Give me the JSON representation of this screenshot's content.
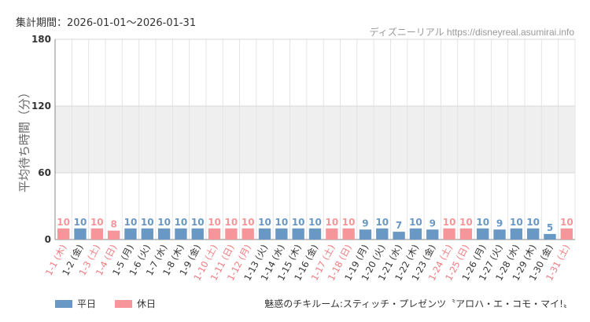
{
  "header": {
    "period": "集計期間：2026-01-01～2026-01-31",
    "credit": "ディズニーリアル https://disneyreal.asumirai.info"
  },
  "footer": {
    "attraction": "魅惑のチキルーム:スティッチ・プレゼンツ〝アロハ・エ・コモ・マイ!〟"
  },
  "colors": {
    "weekday": "#6a98c4",
    "holiday": "#f7969a",
    "band": "#efefef"
  },
  "chart_data": {
    "type": "bar",
    "ylabel": "平均待ち時間（分）",
    "ylim": [
      0,
      180
    ],
    "yticks": [
      "0",
      "60",
      "120",
      "180"
    ],
    "shaded_band": [
      60,
      120
    ],
    "categories": [
      "1-1 (木)",
      "1-2 (金)",
      "1-3 (土)",
      "1-4 (日)",
      "1-5 (月)",
      "1-6 (火)",
      "1-7 (水)",
      "1-8 (木)",
      "1-9 (金)",
      "1-10 (土)",
      "1-11 (日)",
      "1-12 (月)",
      "1-13 (火)",
      "1-14 (水)",
      "1-15 (木)",
      "1-16 (金)",
      "1-17 (土)",
      "1-18 (日)",
      "1-19 (月)",
      "1-20 (火)",
      "1-21 (水)",
      "1-22 (木)",
      "1-23 (金)",
      "1-24 (土)",
      "1-25 (日)",
      "1-26 (月)",
      "1-27 (火)",
      "1-28 (水)",
      "1-29 (木)",
      "1-30 (金)",
      "1-31 (土)"
    ],
    "values": [
      10,
      10,
      10,
      8,
      10,
      10,
      10,
      10,
      10,
      10,
      10,
      10,
      10,
      10,
      10,
      10,
      10,
      10,
      9,
      10,
      7,
      10,
      9,
      10,
      10,
      10,
      9,
      10,
      10,
      5,
      10
    ],
    "day_type": [
      "休日",
      "平日",
      "休日",
      "休日",
      "平日",
      "平日",
      "平日",
      "平日",
      "平日",
      "休日",
      "休日",
      "休日",
      "平日",
      "平日",
      "平日",
      "平日",
      "休日",
      "休日",
      "平日",
      "平日",
      "平日",
      "平日",
      "平日",
      "休日",
      "休日",
      "平日",
      "平日",
      "平日",
      "平日",
      "平日",
      "休日"
    ],
    "legend": [
      {
        "name": "平日",
        "color": "#6a98c4"
      },
      {
        "name": "休日",
        "color": "#f7969a"
      }
    ]
  }
}
